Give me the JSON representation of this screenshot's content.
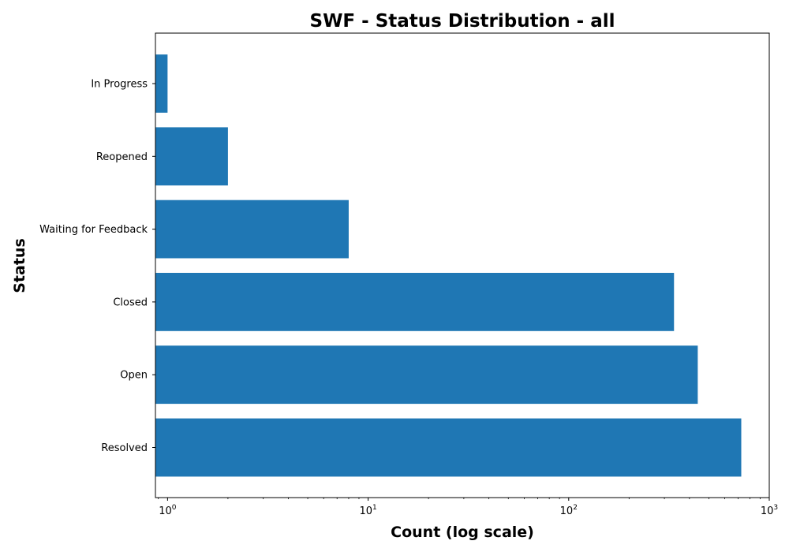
{
  "chart_data": {
    "type": "bar",
    "orientation": "horizontal",
    "title": "SWF - Status Distribution - all",
    "xlabel": "Count (log scale)",
    "ylabel": "Status",
    "x_scale": "log",
    "xlim": [
      0.87,
      1000
    ],
    "x_ticks": [
      {
        "base": "10",
        "exp": "0",
        "value": 1
      },
      {
        "base": "10",
        "exp": "1",
        "value": 10
      },
      {
        "base": "10",
        "exp": "2",
        "value": 100
      },
      {
        "base": "10",
        "exp": "3",
        "value": 1000
      }
    ],
    "categories": [
      "Resolved",
      "Open",
      "Closed",
      "Waiting for Feedback",
      "Reopened",
      "In Progress"
    ],
    "values": [
      725,
      440,
      335,
      8,
      2,
      1
    ],
    "bar_color": "#1f77b4",
    "grid": false,
    "legend": "none"
  }
}
